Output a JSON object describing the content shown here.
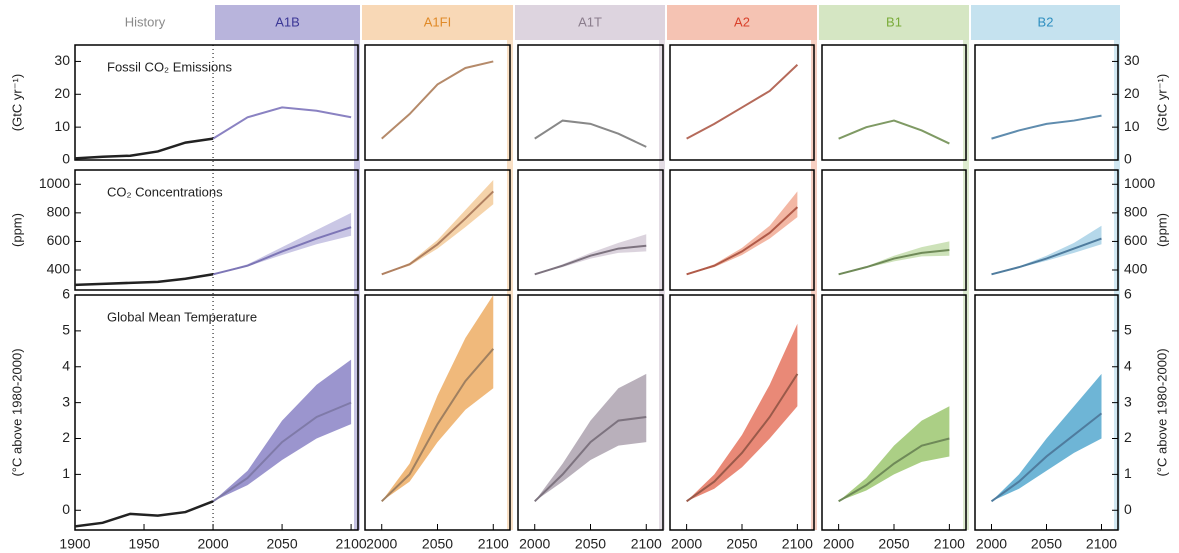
{
  "columns": [
    {
      "name": "History",
      "color": "#ffffff",
      "text_color": "#8a8a8a"
    },
    {
      "name": "A1B",
      "color": "#b8b4dc",
      "text_color": "#3b3796"
    },
    {
      "name": "A1FI",
      "color": "#f8d8b6",
      "text_color": "#e08a28"
    },
    {
      "name": "A1T",
      "color": "#ddd4df",
      "text_color": "#8a7d8c"
    },
    {
      "name": "A2",
      "color": "#f5c3b3",
      "text_color": "#d9412b"
    },
    {
      "name": "B1",
      "color": "#d5e6c3",
      "text_color": "#7aac3a"
    },
    {
      "name": "B2",
      "color": "#c5e2ef",
      "text_color": "#2e8fc0"
    }
  ],
  "x_axes": [
    {
      "xlim": [
        1900,
        2105
      ],
      "xticks": [
        1900,
        1950,
        2000,
        2050,
        2100
      ]
    },
    {
      "xlim": [
        1985,
        2115
      ],
      "xticks": [
        2000,
        2050,
        2100
      ]
    },
    {
      "xlim": [
        1985,
        2115
      ],
      "xticks": [
        2000,
        2050,
        2100
      ]
    },
    {
      "xlim": [
        1985,
        2115
      ],
      "xticks": [
        2000,
        2050,
        2100
      ]
    },
    {
      "xlim": [
        1985,
        2115
      ],
      "xticks": [
        2000,
        2050,
        2100
      ]
    },
    {
      "xlim": [
        1985,
        2115
      ],
      "xticks": [
        2000,
        2050,
        2100
      ]
    }
  ],
  "chart_data": [
    {
      "type": "line",
      "title": "Fossil CO₂ Emissions",
      "ylabel": "(GtC yr⁻¹)",
      "ylim": [
        0,
        35
      ],
      "yticks": [
        0,
        10,
        20,
        30
      ],
      "series": [
        {
          "line_color": "#222222",
          "x": [
            1900,
            1920,
            1940,
            1960,
            1980,
            2000
          ],
          "values": [
            0.5,
            1,
            1.3,
            2.6,
            5.3,
            6.5
          ]
        },
        {
          "line_color": "#8a82c2",
          "x": [
            2000,
            2025,
            2050,
            2075,
            2100
          ],
          "values": [
            6.5,
            13,
            16,
            15,
            13
          ]
        },
        {
          "line_color": "#b58a6a",
          "x": [
            2000,
            2025,
            2050,
            2075,
            2100
          ],
          "values": [
            6.5,
            14,
            23,
            28,
            30
          ]
        },
        {
          "line_color": "#888888",
          "x": [
            2000,
            2025,
            2050,
            2075,
            2100
          ],
          "values": [
            6.5,
            12,
            11,
            8,
            4
          ]
        },
        {
          "line_color": "#b56a5a",
          "x": [
            2000,
            2025,
            2050,
            2075,
            2100
          ],
          "values": [
            6.5,
            11,
            16,
            21,
            29
          ]
        },
        {
          "line_color": "#7f9a64",
          "x": [
            2000,
            2025,
            2050,
            2075,
            2100
          ],
          "values": [
            6.5,
            10,
            12,
            9,
            5
          ]
        },
        {
          "line_color": "#5f8cae",
          "x": [
            2000,
            2025,
            2050,
            2075,
            2100
          ],
          "values": [
            6.5,
            9,
            11,
            12,
            13.5
          ]
        }
      ]
    },
    {
      "type": "line",
      "title": "CO₂ Concentrations",
      "ylabel": "(ppm)",
      "ylim": [
        260,
        1100
      ],
      "yticks": [
        400,
        600,
        800,
        1000
      ],
      "series": [
        {
          "line_color": "#222222",
          "x": [
            1900,
            1920,
            1940,
            1960,
            1980,
            2000
          ],
          "values": [
            296,
            303,
            310,
            317,
            339,
            370
          ]
        },
        {
          "line_color": "#7d76b6",
          "color": "#b8b4dc",
          "x": [
            2000,
            2025,
            2050,
            2075,
            2100
          ],
          "values": [
            370,
            430,
            530,
            620,
            700
          ],
          "lower": [
            370,
            425,
            505,
            580,
            640
          ],
          "upper": [
            370,
            440,
            560,
            680,
            800
          ]
        },
        {
          "line_color": "#b08060",
          "color": "#f2c48e",
          "x": [
            2000,
            2025,
            2050,
            2075,
            2100
          ],
          "values": [
            370,
            440,
            580,
            760,
            950
          ],
          "lower": [
            370,
            430,
            550,
            700,
            860
          ],
          "upper": [
            370,
            450,
            610,
            820,
            1030
          ]
        },
        {
          "line_color": "#7d737f",
          "color": "#cfc4d2",
          "x": [
            2000,
            2025,
            2050,
            2075,
            2100
          ],
          "values": [
            370,
            430,
            500,
            550,
            570
          ],
          "lower": [
            370,
            420,
            480,
            520,
            530
          ],
          "upper": [
            370,
            440,
            520,
            590,
            650
          ]
        },
        {
          "line_color": "#b05a48",
          "color": "#ef9f86",
          "x": [
            2000,
            2025,
            2050,
            2075,
            2100
          ],
          "values": [
            370,
            430,
            530,
            660,
            840
          ],
          "lower": [
            370,
            420,
            505,
            620,
            770
          ],
          "upper": [
            370,
            440,
            555,
            710,
            950
          ]
        },
        {
          "line_color": "#6f8a58",
          "color": "#bcd8a2",
          "x": [
            2000,
            2025,
            2050,
            2075,
            2100
          ],
          "values": [
            370,
            420,
            480,
            520,
            540
          ],
          "lower": [
            370,
            415,
            460,
            495,
            500
          ],
          "upper": [
            370,
            425,
            500,
            560,
            600
          ]
        },
        {
          "line_color": "#4f7c9e",
          "color": "#9ccbe3",
          "x": [
            2000,
            2025,
            2050,
            2075,
            2100
          ],
          "values": [
            370,
            420,
            480,
            550,
            620
          ],
          "lower": [
            370,
            415,
            465,
            520,
            580
          ],
          "upper": [
            370,
            425,
            500,
            590,
            710
          ]
        }
      ]
    },
    {
      "type": "line",
      "title": "Global Mean Temperature",
      "ylabel": "(°C above 1980-2000)",
      "ylim": [
        -0.55,
        6
      ],
      "yticks": [
        0,
        1,
        2,
        3,
        4,
        5,
        6
      ],
      "series": [
        {
          "line_color": "#222222",
          "x": [
            1900,
            1920,
            1940,
            1960,
            1980,
            2000
          ],
          "values": [
            -0.45,
            -0.35,
            -0.1,
            -0.15,
            -0.05,
            0.25
          ]
        },
        {
          "line_color": "#7f7aa8",
          "color": "#7a72bd",
          "x": [
            2000,
            2025,
            2050,
            2075,
            2100
          ],
          "values": [
            0.25,
            0.9,
            1.9,
            2.6,
            3.0
          ],
          "lower": [
            0.25,
            0.7,
            1.4,
            2.0,
            2.4
          ],
          "upper": [
            0.25,
            1.1,
            2.5,
            3.5,
            4.2
          ]
        },
        {
          "line_color": "#a08060",
          "color": "#eba24f",
          "x": [
            2000,
            2025,
            2050,
            2075,
            2100
          ],
          "values": [
            0.25,
            1.0,
            2.4,
            3.6,
            4.5
          ],
          "lower": [
            0.25,
            0.8,
            1.9,
            2.8,
            3.4
          ],
          "upper": [
            0.25,
            1.3,
            3.2,
            4.8,
            6.0
          ]
        },
        {
          "line_color": "#7d737f",
          "color": "#a196a4",
          "x": [
            2000,
            2025,
            2050,
            2075,
            2100
          ],
          "values": [
            0.25,
            1.0,
            1.9,
            2.5,
            2.6
          ],
          "lower": [
            0.25,
            0.8,
            1.4,
            1.8,
            1.9
          ],
          "upper": [
            0.25,
            1.3,
            2.5,
            3.4,
            3.8
          ]
        },
        {
          "line_color": "#9a5a4a",
          "color": "#e2614a",
          "x": [
            2000,
            2025,
            2050,
            2075,
            2100
          ],
          "values": [
            0.25,
            0.8,
            1.6,
            2.6,
            3.8
          ],
          "lower": [
            0.25,
            0.6,
            1.2,
            2.0,
            2.9
          ],
          "upper": [
            0.25,
            1.0,
            2.1,
            3.5,
            5.2
          ]
        },
        {
          "line_color": "#6f8a58",
          "color": "#8fbf5c",
          "x": [
            2000,
            2025,
            2050,
            2075,
            2100
          ],
          "values": [
            0.25,
            0.7,
            1.3,
            1.8,
            2.0
          ],
          "lower": [
            0.25,
            0.55,
            1.0,
            1.35,
            1.5
          ],
          "upper": [
            0.25,
            0.9,
            1.8,
            2.5,
            2.9
          ]
        },
        {
          "line_color": "#4f7c9e",
          "color": "#3e9cc8",
          "x": [
            2000,
            2025,
            2050,
            2075,
            2100
          ],
          "values": [
            0.25,
            0.8,
            1.5,
            2.1,
            2.7
          ],
          "lower": [
            0.25,
            0.6,
            1.1,
            1.6,
            2.0
          ],
          "upper": [
            0.25,
            1.0,
            2.0,
            2.9,
            3.8
          ]
        }
      ]
    }
  ]
}
